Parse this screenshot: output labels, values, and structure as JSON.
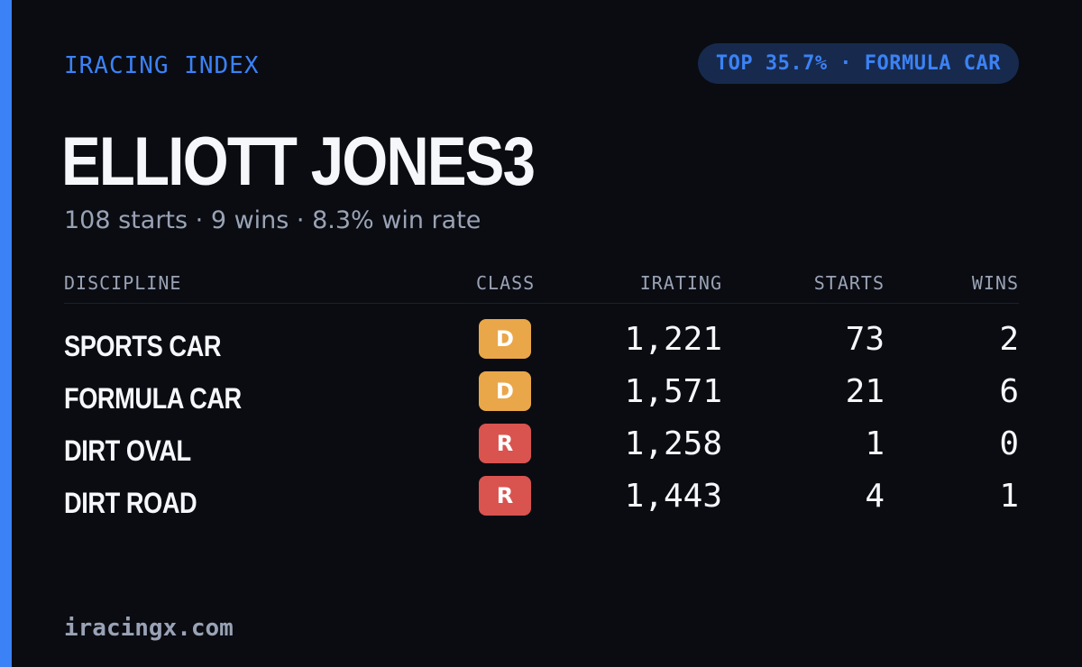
{
  "brand": "IRACING INDEX",
  "rank_badge": "TOP 35.7% · FORMULA CAR",
  "driver_name": "ELLIOTT JONES3",
  "summary": "108 starts · 9 wins · 8.3% win rate",
  "table": {
    "headers": {
      "discipline": "DISCIPLINE",
      "class": "CLASS",
      "irating": "IRATING",
      "starts": "STARTS",
      "wins": "WINS"
    },
    "rows": [
      {
        "discipline": "SPORTS CAR",
        "class": "D",
        "irating": "1,221",
        "starts": "73",
        "wins": "2"
      },
      {
        "discipline": "FORMULA CAR",
        "class": "D",
        "irating": "1,571",
        "starts": "21",
        "wins": "6"
      },
      {
        "discipline": "DIRT OVAL",
        "class": "R",
        "irating": "1,258",
        "starts": "1",
        "wins": "0"
      },
      {
        "discipline": "DIRT ROAD",
        "class": "R",
        "irating": "1,443",
        "starts": "4",
        "wins": "1"
      }
    ]
  },
  "class_colors": {
    "D": "#e9a74a",
    "R": "#d9534f"
  },
  "accent_color": "#3b82f6",
  "footer": "iracingx.com"
}
